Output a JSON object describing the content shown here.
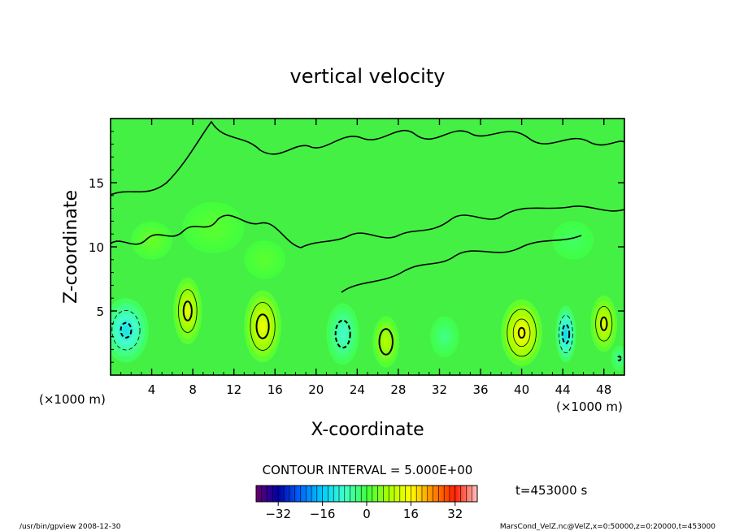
{
  "chart_data": {
    "type": "heatmap",
    "title": "vertical velocity",
    "xlabel": "X-coordinate",
    "ylabel": "Z-coordinate",
    "x_unit_left": "(×1000 m)",
    "x_unit_right": "(×1000 m)",
    "xlim": [
      0,
      50
    ],
    "ylim": [
      0,
      20
    ],
    "x_ticks": [
      4,
      8,
      12,
      16,
      20,
      24,
      28,
      32,
      36,
      40,
      44,
      48
    ],
    "y_ticks": [
      5,
      10,
      15
    ],
    "contour_interval_text": "CONTOUR INTERVAL = 5.000E+00",
    "time_label": "t=453000 s",
    "colorbar": {
      "range": [
        -40,
        40
      ],
      "ticks": [
        -32,
        -16,
        0,
        16,
        32
      ],
      "colors": [
        "#6a006a",
        "#0000aa",
        "#0066ff",
        "#00ccff",
        "#40ffcc",
        "#40ff40",
        "#aaff00",
        "#ffff00",
        "#ff8800",
        "#ff2000",
        "#ffc0c0"
      ]
    },
    "cells": [
      {
        "x": 1.5,
        "z": 3.5,
        "w": -12,
        "sx": 2.2,
        "sz": 2.5
      },
      {
        "x": 7.5,
        "z": 5.0,
        "w": 13,
        "sx": 1.4,
        "sz": 2.6
      },
      {
        "x": 14.8,
        "z": 3.8,
        "w": 14,
        "sx": 1.8,
        "sz": 2.8
      },
      {
        "x": 22.6,
        "z": 3.2,
        "w": -8,
        "sx": 1.6,
        "sz": 2.4
      },
      {
        "x": 26.8,
        "z": 2.6,
        "w": 9,
        "sx": 1.3,
        "sz": 2.0
      },
      {
        "x": 32.5,
        "z": 3.0,
        "w": -4,
        "sx": 1.4,
        "sz": 1.6
      },
      {
        "x": 40.0,
        "z": 3.3,
        "w": 16,
        "sx": 2.0,
        "sz": 2.6
      },
      {
        "x": 44.3,
        "z": 3.2,
        "w": -14,
        "sx": 1.0,
        "sz": 2.2
      },
      {
        "x": 48.0,
        "z": 4.0,
        "w": 12,
        "sx": 1.3,
        "sz": 2.2
      },
      {
        "x": 49.5,
        "z": 1.3,
        "w": -5,
        "sx": 0.8,
        "sz": 1.0
      }
    ],
    "upper_cells": [
      {
        "x": 4.0,
        "z": 10.5,
        "w": 3,
        "sx": 2.0,
        "sz": 1.5
      },
      {
        "x": 10.0,
        "z": 11.5,
        "w": 2,
        "sx": 3.0,
        "sz": 2.0
      },
      {
        "x": 15.0,
        "z": 9.0,
        "w": 2,
        "sx": 2.0,
        "sz": 1.5
      },
      {
        "x": 45.0,
        "z": 10.5,
        "w": -2,
        "sx": 2.0,
        "sz": 1.5
      }
    ]
  },
  "footer": {
    "left": "/usr/bin/gpview   2008-12-30",
    "right": "MarsCond_VelZ.nc@VelZ,x=0:50000,z=0:20000,t=453000"
  }
}
